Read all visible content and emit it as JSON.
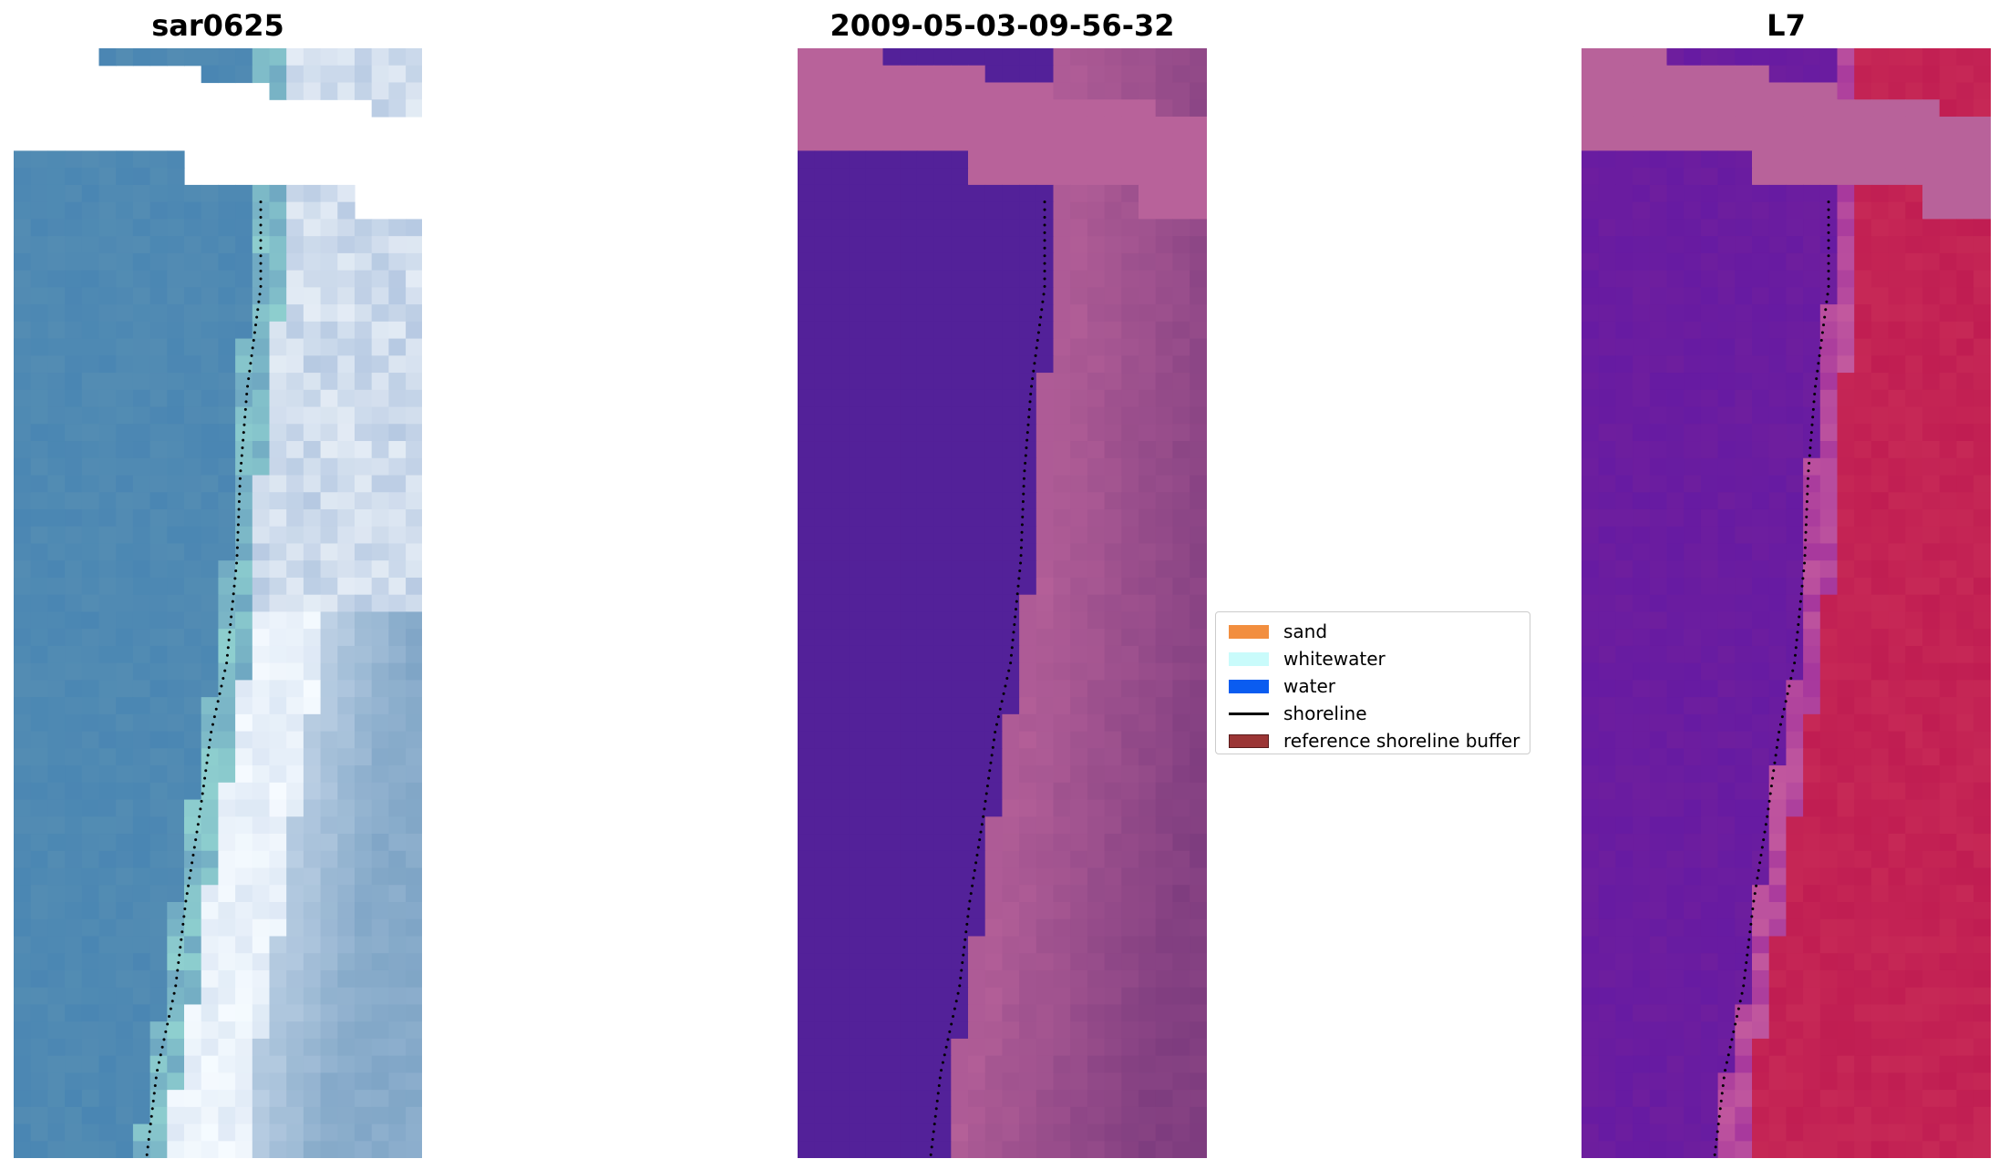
{
  "panels": [
    {
      "title": "sar0625"
    },
    {
      "title": "2009-05-03-09-56-32"
    },
    {
      "title": "L7"
    }
  ],
  "legend": {
    "items": [
      {
        "label": "sand",
        "color": "#f28e3f",
        "kind": "patch"
      },
      {
        "label": "whitewater",
        "color": "#c9fbfb",
        "kind": "patch"
      },
      {
        "label": "water",
        "color": "#0a5cf0",
        "kind": "patch"
      },
      {
        "label": "shoreline",
        "color": "#000000",
        "kind": "line"
      },
      {
        "label": "reference shoreline buffer",
        "color": "#9b3535",
        "border": "#5a1a1a",
        "kind": "patch"
      }
    ]
  },
  "colors": {
    "rgb_water": "#4a86b3",
    "rgb_surf": "#c8d8ea",
    "swir_water": "#532199",
    "swir_land": "#b8629a",
    "swir_dark": "#7a3a7d",
    "l7_water": "#6e1e9e",
    "l7_land": "#c01d52",
    "nodata_fill": "#b8629a",
    "shoreline_points": "#000000"
  }
}
